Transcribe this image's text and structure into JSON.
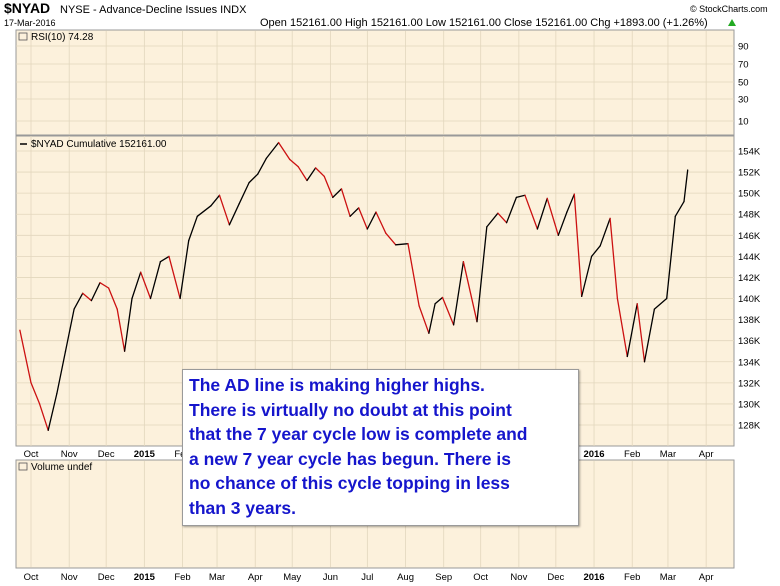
{
  "header": {
    "symbol": "$NYAD",
    "description": "NYSE - Advance-Decline Issues INDX",
    "date": "17-Mar-2016",
    "ohlc": "Open 152161.00  High 152161.00  Low 152161.00  Close 152161.00  Chg +1893.00 (+1.26%)",
    "up_arrow_color": "#22aa22",
    "watermark": "© StockCharts.com"
  },
  "rsi_panel": {
    "label": "RSI(10) 74.28",
    "ticks": [
      "90",
      "70",
      "50",
      "30",
      "10"
    ]
  },
  "main_panel": {
    "label": "$NYAD Cumulative 152161.00",
    "ticks": [
      "154K",
      "152K",
      "150K",
      "148K",
      "146K",
      "144K",
      "142K",
      "140K",
      "138K",
      "136K",
      "134K",
      "132K",
      "130K",
      "128K"
    ]
  },
  "x_axis_ticks": [
    "Oct",
    "Nov",
    "Dec",
    "2015",
    "Feb",
    "Mar",
    "Apr",
    "May",
    "Jun",
    "Jul",
    "Aug",
    "Sep",
    "Oct",
    "Nov",
    "Dec",
    "2016",
    "Feb",
    "Mar",
    "Apr"
  ],
  "volume_panel": {
    "label": "Volume undef"
  },
  "annotation": {
    "lines": [
      "The AD line is making higher highs.",
      "There is virtually no doubt at this point",
      "that the 7 year cycle low is complete and",
      "a new 7 year cycle has begun. There is",
      "no chance of this cycle topping in less",
      "than 3 years."
    ]
  },
  "colors": {
    "panel_bg": "#fcf1dc",
    "grid": "#e2d6bd",
    "up_line": "#000000",
    "down_line": "#cc1111",
    "annotation_text": "#1515cc"
  },
  "chart_data": {
    "type": "line",
    "title": "$NYAD Cumulative",
    "series": [
      {
        "name": "$NYAD Cumulative",
        "x": [
          "2014-09-22",
          "2014-10-01",
          "2014-10-08",
          "2014-10-15",
          "2014-10-22",
          "2014-10-29",
          "2014-11-05",
          "2014-11-12",
          "2014-11-19",
          "2014-11-26",
          "2014-12-03",
          "2014-12-10",
          "2014-12-16",
          "2014-12-22",
          "2014-12-29",
          "2015-01-06",
          "2015-01-14",
          "2015-01-21",
          "2015-01-30",
          "2015-02-06",
          "2015-02-13",
          "2015-02-24",
          "2015-03-03",
          "2015-03-11",
          "2015-03-19",
          "2015-03-27",
          "2015-04-03",
          "2015-04-10",
          "2015-04-20",
          "2015-04-29",
          "2015-05-06",
          "2015-05-13",
          "2015-05-20",
          "2015-05-27",
          "2015-06-03",
          "2015-06-10",
          "2015-06-17",
          "2015-06-24",
          "2015-07-01",
          "2015-07-08",
          "2015-07-16",
          "2015-07-24",
          "2015-08-03",
          "2015-08-12",
          "2015-08-20",
          "2015-08-25",
          "2015-08-31",
          "2015-09-09",
          "2015-09-17",
          "2015-09-28",
          "2015-10-06",
          "2015-10-15",
          "2015-10-22",
          "2015-10-30",
          "2015-11-06",
          "2015-11-16",
          "2015-11-24",
          "2015-12-03",
          "2015-12-10",
          "2015-12-16",
          "2015-12-22",
          "2015-12-30",
          "2016-01-06",
          "2016-01-14",
          "2016-01-20",
          "2016-01-28",
          "2016-02-05",
          "2016-02-11",
          "2016-02-19",
          "2016-02-29",
          "2016-03-07",
          "2016-03-14",
          "2016-03-17"
        ],
        "values": [
          137,
          132,
          130,
          127.5,
          131,
          135,
          139,
          140.5,
          139.8,
          141.5,
          141,
          139,
          135,
          140,
          142.5,
          140,
          143.5,
          144,
          140,
          145.5,
          147.8,
          148.8,
          149.8,
          147,
          149,
          151,
          151.8,
          153.3,
          154.8,
          153.2,
          152.5,
          151.2,
          152.4,
          151.6,
          149.6,
          150.4,
          147.8,
          148.6,
          146.6,
          148.2,
          146.2,
          145.1,
          145.2,
          139.3,
          136.7,
          139.5,
          140.1,
          137.5,
          143.5,
          137.8,
          146.8,
          148.1,
          147.2,
          149.6,
          149.8,
          146.6,
          149.5,
          146,
          148.2,
          149.9,
          140.2,
          144,
          145,
          147.6,
          140,
          134.5,
          139.5,
          134,
          139,
          140,
          147.8,
          149.2,
          152.2
        ]
      }
    ],
    "ylim": [
      126.5,
      155.5
    ],
    "y_unit": "thousands",
    "legend": "top-left",
    "grid": true,
    "rsi_latest": 74.28
  }
}
